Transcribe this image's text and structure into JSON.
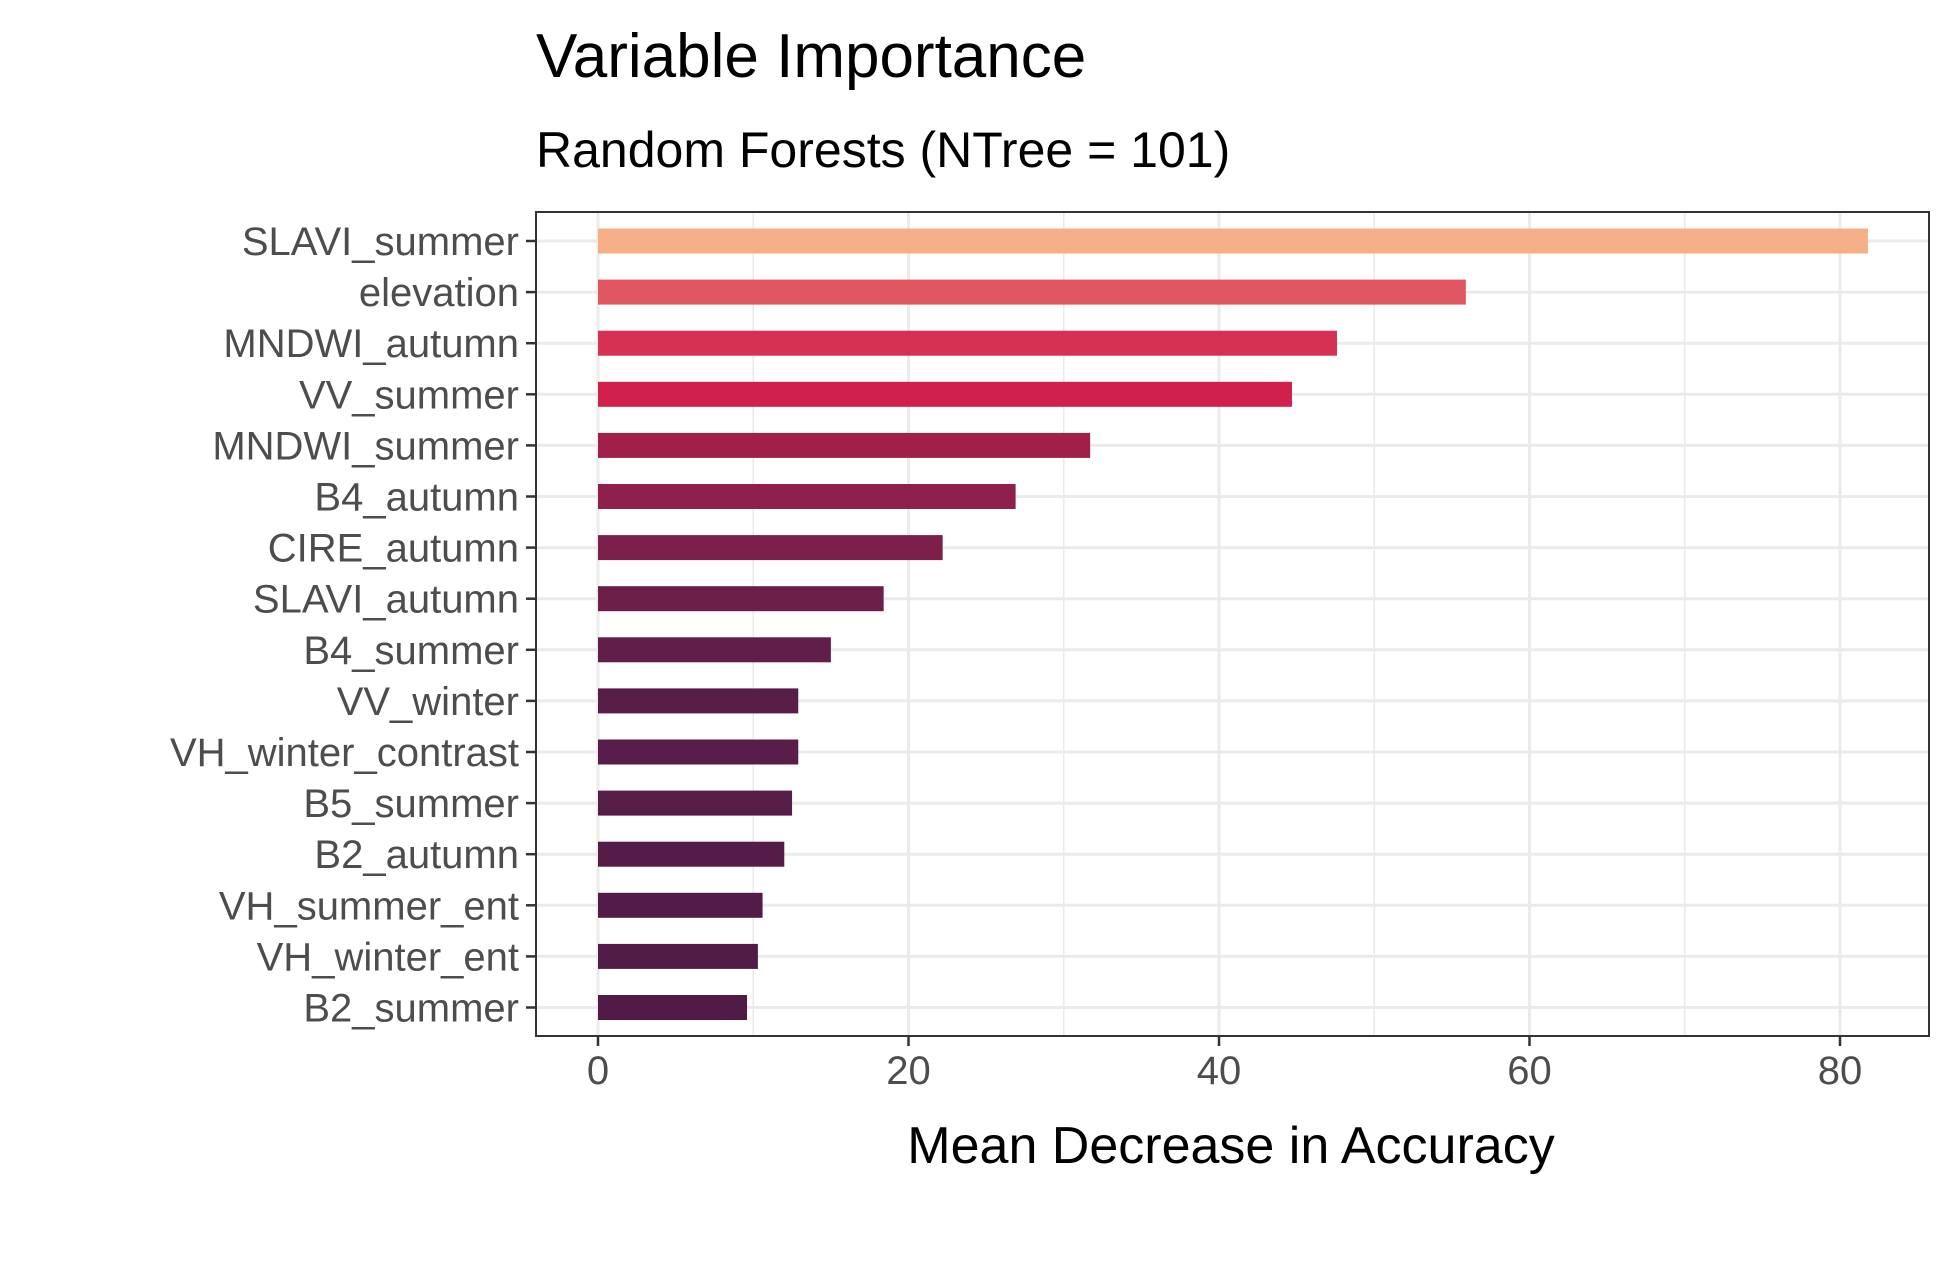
{
  "chart_data": {
    "type": "bar",
    "orientation": "horizontal",
    "title": "Variable Importance",
    "subtitle": "Random Forests (NTree = 101)",
    "xlabel": "Mean Decrease in Accuracy",
    "ylabel": "",
    "xlim": [
      -4,
      86
    ],
    "x_ticks": [
      0,
      20,
      40,
      60,
      80
    ],
    "grid": true,
    "legend": "none",
    "categories": [
      "SLAVI_summer",
      "elevation",
      "MNDWI_autumn",
      "VV_summer",
      "MNDWI_summer",
      "B4_autumn",
      "CIRE_autumn",
      "SLAVI_autumn",
      "B4_summer",
      "VV_winter",
      "VH_winter_contrast",
      "B5_summer",
      "B2_autumn",
      "VH_summer_ent",
      "VH_winter_ent",
      "B2_summer"
    ],
    "values": [
      81.8,
      55.9,
      47.6,
      44.7,
      31.7,
      26.9,
      22.2,
      18.4,
      15.0,
      12.9,
      12.9,
      12.5,
      12.0,
      10.6,
      10.3,
      9.6
    ],
    "colors": [
      "#f5b088",
      "#e05761",
      "#d63153",
      "#d0204b",
      "#a12049",
      "#8f1f4b",
      "#7c1f4a",
      "#6b1f49",
      "#611e4a",
      "#591d49",
      "#591d49",
      "#571d49",
      "#561c48",
      "#531c48",
      "#521c48",
      "#501c47"
    ]
  }
}
